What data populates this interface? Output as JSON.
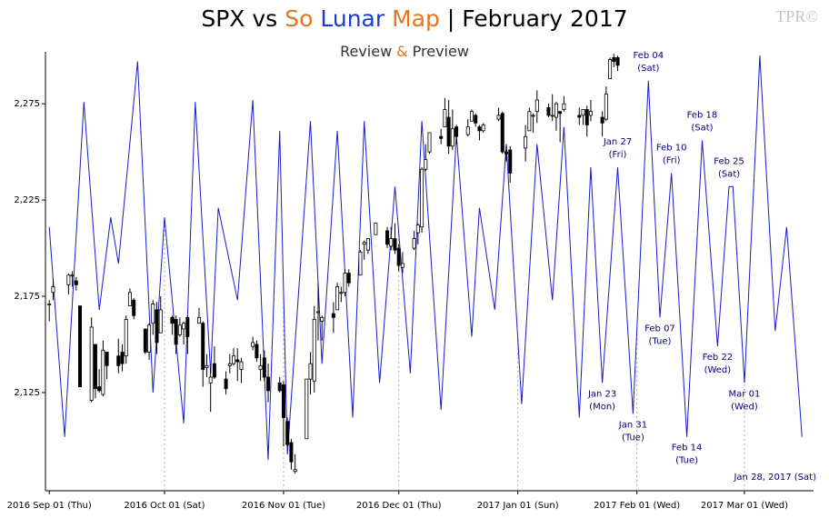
{
  "chart_data": {
    "type": "candlestick",
    "title_parts": [
      {
        "text": "SPX vs",
        "color": "#000000"
      },
      {
        "text": "So",
        "color": "#e8731a"
      },
      {
        "text": "Lunar",
        "color": "#1a3ccf"
      },
      {
        "text": "Map",
        "color": "#e8731a"
      },
      {
        "text": "| February 2017",
        "color": "#000000"
      }
    ],
    "subtitle_parts": [
      {
        "text": "Review",
        "color": "#333333"
      },
      {
        "text": "&",
        "color": "#e8731a"
      },
      {
        "text": "Preview",
        "color": "#333333"
      }
    ],
    "watermark": "TPR©",
    "footnote": "Jan 28, 2017 (Sat)",
    "up_color": "#ffffff",
    "down_color": "#000000",
    "dates": [
      "2016-09-01",
      "2016-09-02",
      "2016-09-06",
      "2016-09-07",
      "2016-09-08",
      "2016-09-09",
      "2016-09-12",
      "2016-09-13",
      "2016-09-14",
      "2016-09-15",
      "2016-09-16",
      "2016-09-19",
      "2016-09-20",
      "2016-09-21",
      "2016-09-22",
      "2016-09-23",
      "2016-09-26",
      "2016-09-27",
      "2016-09-28",
      "2016-09-29",
      "2016-09-30",
      "2016-10-03",
      "2016-10-04",
      "2016-10-05",
      "2016-10-06",
      "2016-10-07",
      "2016-10-10",
      "2016-10-11",
      "2016-10-12",
      "2016-10-13",
      "2016-10-14",
      "2016-10-17",
      "2016-10-18",
      "2016-10-19",
      "2016-10-20",
      "2016-10-21",
      "2016-10-24",
      "2016-10-25",
      "2016-10-26",
      "2016-10-27",
      "2016-10-28",
      "2016-10-31",
      "2016-11-01",
      "2016-11-02",
      "2016-11-03",
      "2016-11-04",
      "2016-11-07",
      "2016-11-08",
      "2016-11-09",
      "2016-11-10",
      "2016-11-11",
      "2016-11-14",
      "2016-11-15",
      "2016-11-16",
      "2016-11-17",
      "2016-11-18",
      "2016-11-21",
      "2016-11-22",
      "2016-11-23",
      "2016-11-25",
      "2016-11-28",
      "2016-11-29",
      "2016-11-30",
      "2016-12-01",
      "2016-12-02",
      "2016-12-05",
      "2016-12-06",
      "2016-12-07",
      "2016-12-08",
      "2016-12-09",
      "2016-12-12",
      "2016-12-13",
      "2016-12-14",
      "2016-12-15",
      "2016-12-16",
      "2016-12-19",
      "2016-12-20",
      "2016-12-21",
      "2016-12-22",
      "2016-12-23",
      "2016-12-27",
      "2016-12-28",
      "2016-12-29",
      "2016-12-30",
      "2017-01-03",
      "2017-01-04",
      "2017-01-05",
      "2017-01-06",
      "2017-01-09",
      "2017-01-10",
      "2017-01-11",
      "2017-01-12",
      "2017-01-13",
      "2017-01-17",
      "2017-01-18",
      "2017-01-19",
      "2017-01-20",
      "2017-01-23",
      "2017-01-24",
      "2017-01-25",
      "2017-01-26",
      "2017-01-27"
    ],
    "ohlc": [
      [
        2171,
        2173,
        2162,
        2171
      ],
      [
        2177,
        2184,
        2173,
        2180
      ],
      [
        2181,
        2187,
        2176,
        2186
      ],
      [
        2186,
        2188,
        2180,
        2186
      ],
      [
        2183,
        2185,
        2178,
        2181
      ],
      [
        2170,
        2170,
        2128,
        2128
      ],
      [
        2121,
        2164,
        2120,
        2159
      ],
      [
        2150,
        2150,
        2122,
        2127
      ],
      [
        2128,
        2137,
        2125,
        2126
      ],
      [
        2124,
        2152,
        2123,
        2147
      ],
      [
        2146,
        2146,
        2132,
        2139
      ],
      [
        2144,
        2153,
        2135,
        2139
      ],
      [
        2146,
        2150,
        2136,
        2140
      ],
      [
        2144,
        2165,
        2140,
        2163
      ],
      [
        2170,
        2179,
        2170,
        2177
      ],
      [
        2173,
        2174,
        2163,
        2165
      ],
      [
        2158,
        2158,
        2145,
        2146
      ],
      [
        2146,
        2161,
        2142,
        2160
      ],
      [
        2161,
        2173,
        2155,
        2171
      ],
      [
        2168,
        2172,
        2145,
        2151
      ],
      [
        2156,
        2175,
        2156,
        2168
      ],
      [
        2164,
        2165,
        2155,
        2161
      ],
      [
        2163,
        2165,
        2145,
        2150
      ],
      [
        2155,
        2164,
        2154,
        2160
      ],
      [
        2158,
        2162,
        2150,
        2161
      ],
      [
        2164,
        2165,
        2145,
        2154
      ],
      [
        2161,
        2169,
        2161,
        2164
      ],
      [
        2161,
        2162,
        2128,
        2137
      ],
      [
        2138,
        2145,
        2133,
        2139
      ],
      [
        2130,
        2138,
        2115,
        2133
      ],
      [
        2140,
        2149,
        2132,
        2133
      ],
      [
        2132,
        2136,
        2124,
        2127
      ],
      [
        2139,
        2145,
        2135,
        2140
      ],
      [
        2140,
        2148,
        2139,
        2144
      ],
      [
        2142,
        2148,
        2131,
        2141
      ],
      [
        2137,
        2143,
        2130,
        2141
      ],
      [
        2149,
        2154,
        2147,
        2151
      ],
      [
        2150,
        2152,
        2141,
        2143
      ],
      [
        2137,
        2145,
        2131,
        2139
      ],
      [
        2143,
        2147,
        2131,
        2133
      ],
      [
        2133,
        2140,
        2120,
        2126
      ],
      [
        2130,
        2133,
        2125,
        2126
      ],
      [
        2129,
        2131,
        2097,
        2112
      ],
      [
        2110,
        2112,
        2097,
        2098
      ],
      [
        2099,
        2101,
        2085,
        2089
      ],
      [
        2084,
        2093,
        2083,
        2085
      ],
      [
        2101,
        2132,
        2101,
        2132
      ],
      [
        2132,
        2146,
        2124,
        2140
      ],
      [
        2131,
        2170,
        2125,
        2163
      ],
      [
        2167,
        2182,
        2152,
        2167
      ],
      [
        2162,
        2165,
        2152,
        2164
      ],
      [
        2166,
        2172,
        2156,
        2164
      ],
      [
        2168,
        2182,
        2168,
        2180
      ],
      [
        2177,
        2180,
        2172,
        2177
      ],
      [
        2177,
        2189,
        2175,
        2187
      ],
      [
        2187,
        2189,
        2180,
        2182
      ],
      [
        2186,
        2199,
        2186,
        2198
      ],
      [
        2202,
        2204,
        2194,
        2203
      ],
      [
        2199,
        2204,
        2197,
        2205
      ],
      [
        2207,
        2213,
        2207,
        2213
      ],
      [
        2209,
        2211,
        2200,
        2202
      ],
      [
        2201,
        2211,
        2199,
        2205
      ],
      [
        2205,
        2213,
        2197,
        2199
      ],
      [
        2200,
        2202,
        2188,
        2191
      ],
      [
        2190,
        2198,
        2187,
        2192
      ],
      [
        2200,
        2209,
        2199,
        2205
      ],
      [
        2208,
        2213,
        2202,
        2212
      ],
      [
        2211,
        2242,
        2208,
        2241
      ],
      [
        2241,
        2254,
        2240,
        2246
      ],
      [
        2250,
        2260,
        2249,
        2260
      ],
      [
        2258,
        2262,
        2254,
        2257
      ],
      [
        2263,
        2278,
        2263,
        2272
      ],
      [
        2268,
        2277,
        2249,
        2253
      ],
      [
        2253,
        2272,
        2251,
        2262
      ],
      [
        2263,
        2264,
        2254,
        2258
      ],
      [
        2259,
        2267,
        2258,
        2263
      ],
      [
        2266,
        2272,
        2266,
        2271
      ],
      [
        2269,
        2270,
        2263,
        2265
      ],
      [
        2263,
        2264,
        2256,
        2261
      ],
      [
        2261,
        2265,
        2260,
        2264
      ],
      [
        2267,
        2273,
        2266,
        2269
      ],
      [
        2270,
        2271,
        2249,
        2250
      ],
      [
        2250,
        2254,
        2245,
        2249
      ],
      [
        2251,
        2253,
        2234,
        2239
      ],
      [
        2252,
        2264,
        2245,
        2258
      ],
      [
        2261,
        2273,
        2261,
        2271
      ],
      [
        2269,
        2270,
        2260,
        2269
      ],
      [
        2271,
        2282,
        2265,
        2277
      ],
      [
        2273,
        2275,
        2268,
        2269
      ],
      [
        2269,
        2280,
        2266,
        2269
      ],
      [
        2268,
        2276,
        2261,
        2275
      ],
      [
        2271,
        2271,
        2255,
        2270
      ],
      [
        2272,
        2279,
        2271,
        2275
      ],
      [
        2269,
        2273,
        2264,
        2268
      ],
      [
        2269,
        2272,
        2264,
        2272
      ],
      [
        2272,
        2274,
        2258,
        2264
      ],
      [
        2269,
        2277,
        2266,
        2271
      ],
      [
        2268,
        2271,
        2258,
        2265
      ],
      [
        2267,
        2284,
        2266,
        2280
      ],
      [
        2288,
        2299,
        2288,
        2298
      ],
      [
        2299,
        2301,
        2294,
        2297
      ],
      [
        2299,
        2300,
        2292,
        2295
      ]
    ],
    "line": {
      "type": "line",
      "color": "#1a1acc",
      "x": [
        "2016-09-01",
        "2016-09-05",
        "2016-09-10",
        "2016-09-14",
        "2016-09-17",
        "2016-09-19",
        "2016-09-24",
        "2016-09-28",
        "2016-10-01",
        "2016-10-06",
        "2016-10-09",
        "2016-10-13",
        "2016-10-15",
        "2016-10-20",
        "2016-10-24",
        "2016-10-28",
        "2016-10-31",
        "2016-11-02",
        "2016-11-08",
        "2016-11-11",
        "2016-11-15",
        "2016-11-19",
        "2016-11-22",
        "2016-11-26",
        "2016-11-30",
        "2016-12-04",
        "2016-12-07",
        "2016-12-12",
        "2016-12-16",
        "2016-12-20",
        "2016-12-22",
        "2016-12-26",
        "2016-12-29",
        "2017-01-02",
        "2017-01-06",
        "2017-01-10",
        "2017-01-13",
        "2017-01-17",
        "2017-01-20",
        "2017-01-23",
        "2017-01-27",
        "2017-01-31",
        "2017-02-04",
        "2017-02-07",
        "2017-02-10",
        "2017-02-14",
        "2017-02-18",
        "2017-02-22",
        "2017-02-25",
        "2017-02-26",
        "2017-03-01",
        "2017-03-05",
        "2017-03-09",
        "2017-03-12",
        "2017-03-16"
      ],
      "values": [
        2211,
        2102,
        2276,
        2168,
        2216,
        2192,
        2297,
        2125,
        2216,
        2109,
        2276,
        2135,
        2221,
        2173,
        2277,
        2090,
        2261,
        2093,
        2266,
        2140,
        2261,
        2112,
        2266,
        2130,
        2232,
        2135,
        2266,
        2116,
        2259,
        2154,
        2221,
        2168,
        2254,
        2119,
        2254,
        2173,
        2263,
        2112,
        2242,
        2130,
        2242,
        2114,
        2287,
        2164,
        2239,
        2102,
        2256,
        2149,
        2232,
        2232,
        2130,
        2300,
        2157,
        2211,
        2102
      ]
    },
    "annotation_color": "#00007f",
    "annotations": [
      {
        "x": "2017-01-23",
        "label": "Jan 23",
        "sub": "(Mon)",
        "position": "below"
      },
      {
        "x": "2017-01-27",
        "label": "Jan 27",
        "sub": "(Fri)",
        "position": "above"
      },
      {
        "x": "2017-01-31",
        "label": "Jan 31",
        "sub": "(Tue)",
        "position": "below"
      },
      {
        "x": "2017-02-04",
        "label": "Feb 04",
        "sub": "(Sat)",
        "position": "above"
      },
      {
        "x": "2017-02-07",
        "label": "Feb 07",
        "sub": "(Tue)",
        "position": "below"
      },
      {
        "x": "2017-02-10",
        "label": "Feb 10",
        "sub": "(Fri)",
        "position": "above"
      },
      {
        "x": "2017-02-14",
        "label": "Feb 14",
        "sub": "(Tue)",
        "position": "below"
      },
      {
        "x": "2017-02-18",
        "label": "Feb 18",
        "sub": "(Sat)",
        "position": "above"
      },
      {
        "x": "2017-02-22",
        "label": "Feb 22",
        "sub": "(Wed)",
        "position": "below"
      },
      {
        "x": "2017-02-25",
        "label": "Feb 25",
        "sub": "(Sat)",
        "position": "above"
      },
      {
        "x": "2017-03-01",
        "label": "Mar 01",
        "sub": "(Wed)",
        "position": "below"
      }
    ],
    "xlim": [
      "2016-08-31",
      "2017-03-19"
    ],
    "xticks": [
      {
        "value": "2016-09-01",
        "label": "2016 Sep 01 (Thu)"
      },
      {
        "value": "2016-10-01",
        "label": "2016 Oct 01 (Sat)"
      },
      {
        "value": "2016-11-01",
        "label": "2016 Nov 01 (Tue)"
      },
      {
        "value": "2016-12-01",
        "label": "2016 Dec 01 (Thu)"
      },
      {
        "value": "2017-01-01",
        "label": "2017 Jan 01 (Sun)"
      },
      {
        "value": "2017-02-01",
        "label": "2017 Feb 01 (Wed)"
      },
      {
        "value": "2017-03-01",
        "label": "2017 Mar 01 (Wed)"
      }
    ],
    "ylim": [
      2074,
      2302
    ],
    "yticks": [
      {
        "value": 2125,
        "label": "2,125"
      },
      {
        "value": 2175,
        "label": "2,175"
      },
      {
        "value": 2225,
        "label": "2,225"
      },
      {
        "value": 2275,
        "label": "2,275"
      }
    ]
  }
}
